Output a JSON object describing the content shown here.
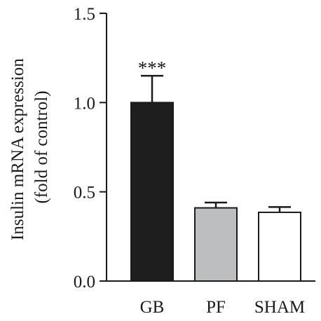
{
  "chart_data": {
    "type": "bar",
    "categories": [
      "GB",
      "PF",
      "SHAM"
    ],
    "values": [
      1.0,
      0.41,
      0.385
    ],
    "errors": [
      0.15,
      0.03,
      0.03
    ],
    "bar_colors": [
      "#1e1e1e",
      "#bdbec0",
      "#ffffff"
    ],
    "bar_edge_color": "#1a1a1a",
    "ylabel_lines": [
      "Insulin mRNA expression",
      "(fold of control)"
    ],
    "ylim": [
      0,
      1.5
    ],
    "yticks": [
      0.0,
      0.5,
      1.0,
      1.5
    ],
    "ytick_labels": [
      "0.0",
      "0.5",
      "1.0",
      "1.5"
    ],
    "annotations": [
      {
        "category": "GB",
        "text": "***"
      }
    ],
    "grid": false,
    "legend": "none"
  }
}
